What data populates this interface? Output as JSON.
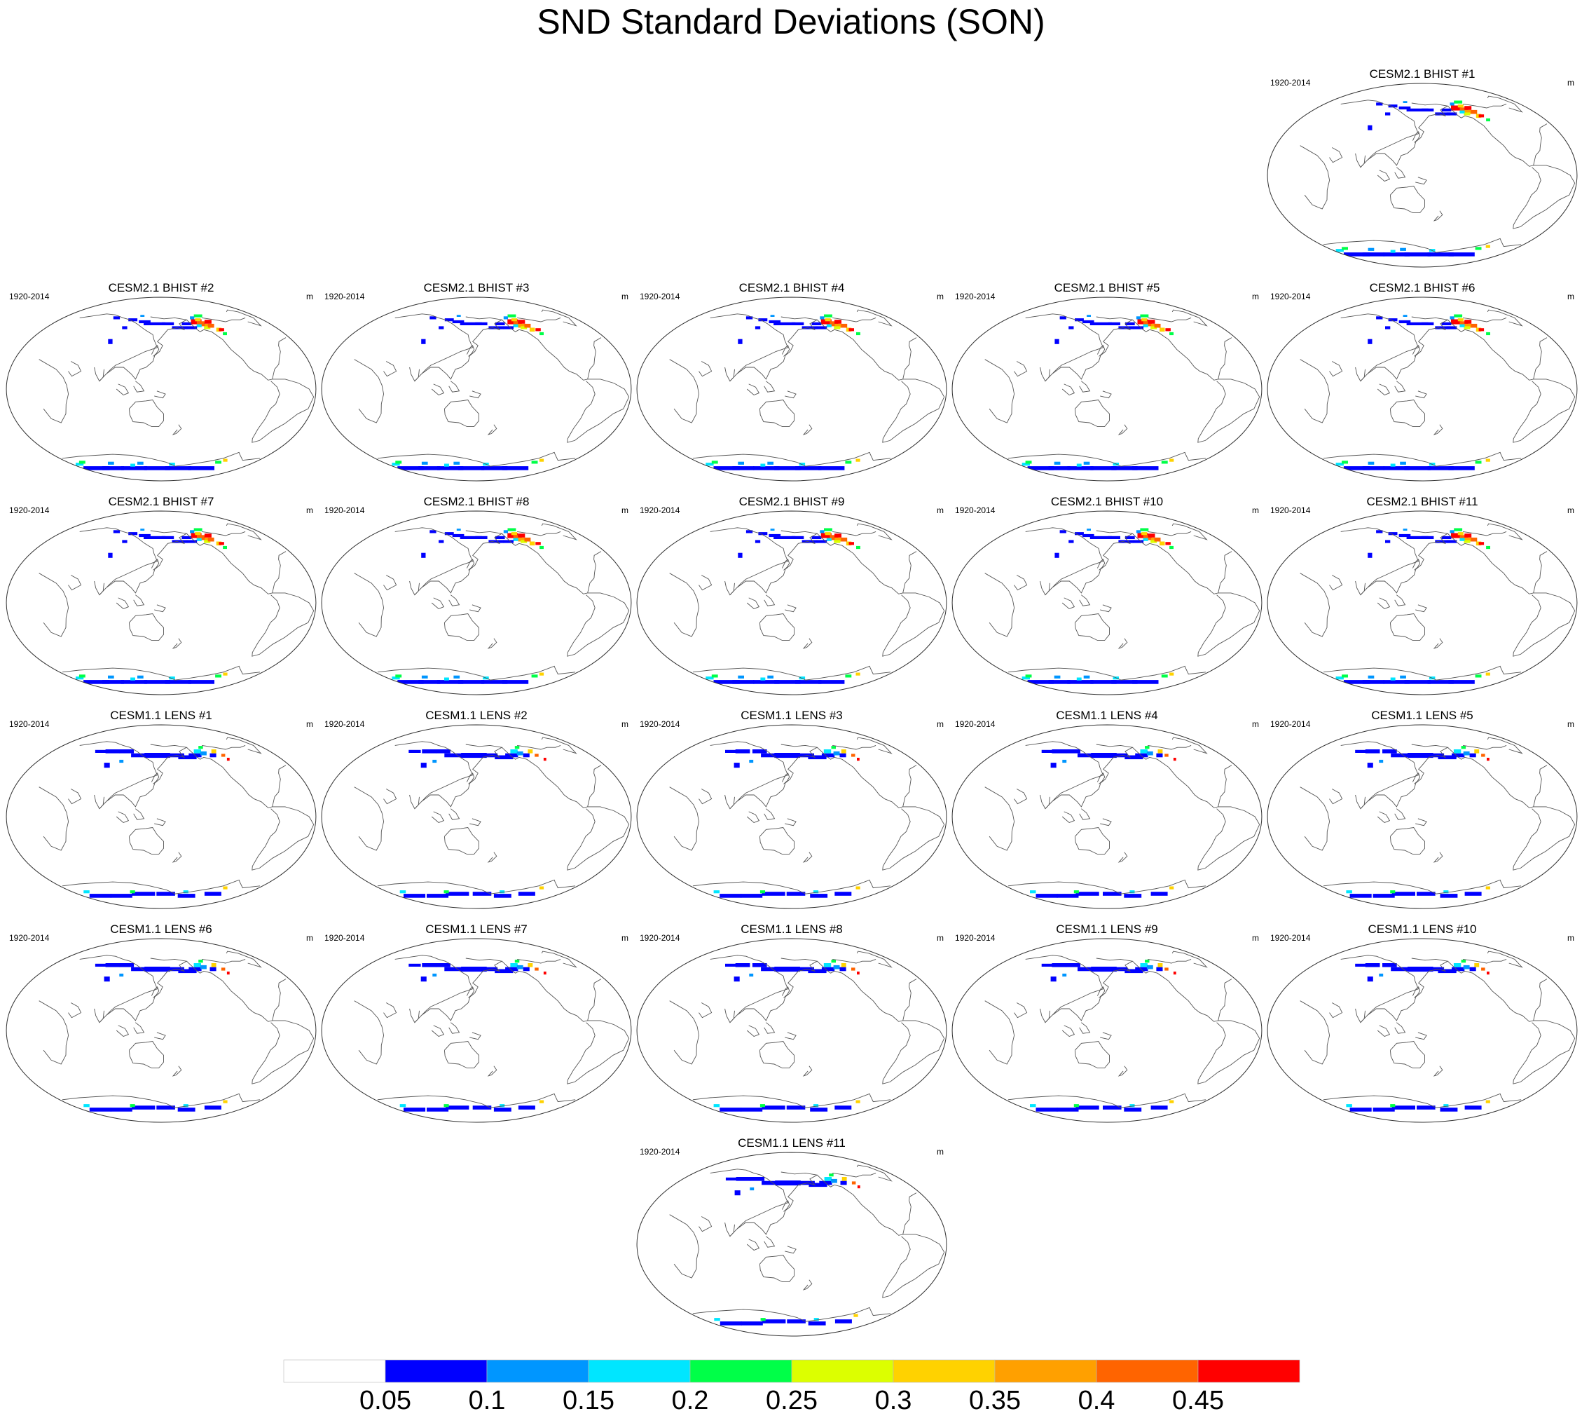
{
  "title": "SND Standard Deviations (SON)",
  "panel_period": "1920-2014",
  "panel_units": "m",
  "panels": [
    {
      "title": "CESM2.1 BHIST #1",
      "group": "BHIST"
    },
    {
      "title": "CESM2.1 BHIST #2",
      "group": "BHIST"
    },
    {
      "title": "CESM2.1 BHIST #3",
      "group": "BHIST"
    },
    {
      "title": "CESM2.1 BHIST #4",
      "group": "BHIST"
    },
    {
      "title": "CESM2.1 BHIST #5",
      "group": "BHIST"
    },
    {
      "title": "CESM2.1 BHIST #6",
      "group": "BHIST"
    },
    {
      "title": "CESM2.1 BHIST #7",
      "group": "BHIST"
    },
    {
      "title": "CESM2.1 BHIST #8",
      "group": "BHIST"
    },
    {
      "title": "CESM2.1 BHIST #9",
      "group": "BHIST"
    },
    {
      "title": "CESM2.1 BHIST #10",
      "group": "BHIST"
    },
    {
      "title": "CESM2.1 BHIST #11",
      "group": "BHIST"
    },
    {
      "title": "CESM1.1 LENS #1",
      "group": "LENS"
    },
    {
      "title": "CESM1.1 LENS #2",
      "group": "LENS"
    },
    {
      "title": "CESM1.1 LENS #3",
      "group": "LENS"
    },
    {
      "title": "CESM1.1 LENS #4",
      "group": "LENS"
    },
    {
      "title": "CESM1.1 LENS #5",
      "group": "LENS"
    },
    {
      "title": "CESM1.1 LENS #6",
      "group": "LENS"
    },
    {
      "title": "CESM1.1 LENS #7",
      "group": "LENS"
    },
    {
      "title": "CESM1.1 LENS #8",
      "group": "LENS"
    },
    {
      "title": "CESM1.1 LENS #9",
      "group": "LENS"
    },
    {
      "title": "CESM1.1 LENS #10",
      "group": "LENS"
    },
    {
      "title": "CESM1.1 LENS #11",
      "group": "LENS"
    }
  ],
  "colorbar": {
    "labels": [
      "0.05",
      "0.1",
      "0.15",
      "0.2",
      "0.25",
      "0.3",
      "0.35",
      "0.4",
      "0.45"
    ],
    "colors": [
      "#ffffff",
      "#0000ff",
      "#0096ff",
      "#00e6ff",
      "#00ff48",
      "#dcff00",
      "#ffd200",
      "#ffa000",
      "#ff6400",
      "#ff0000"
    ]
  }
}
